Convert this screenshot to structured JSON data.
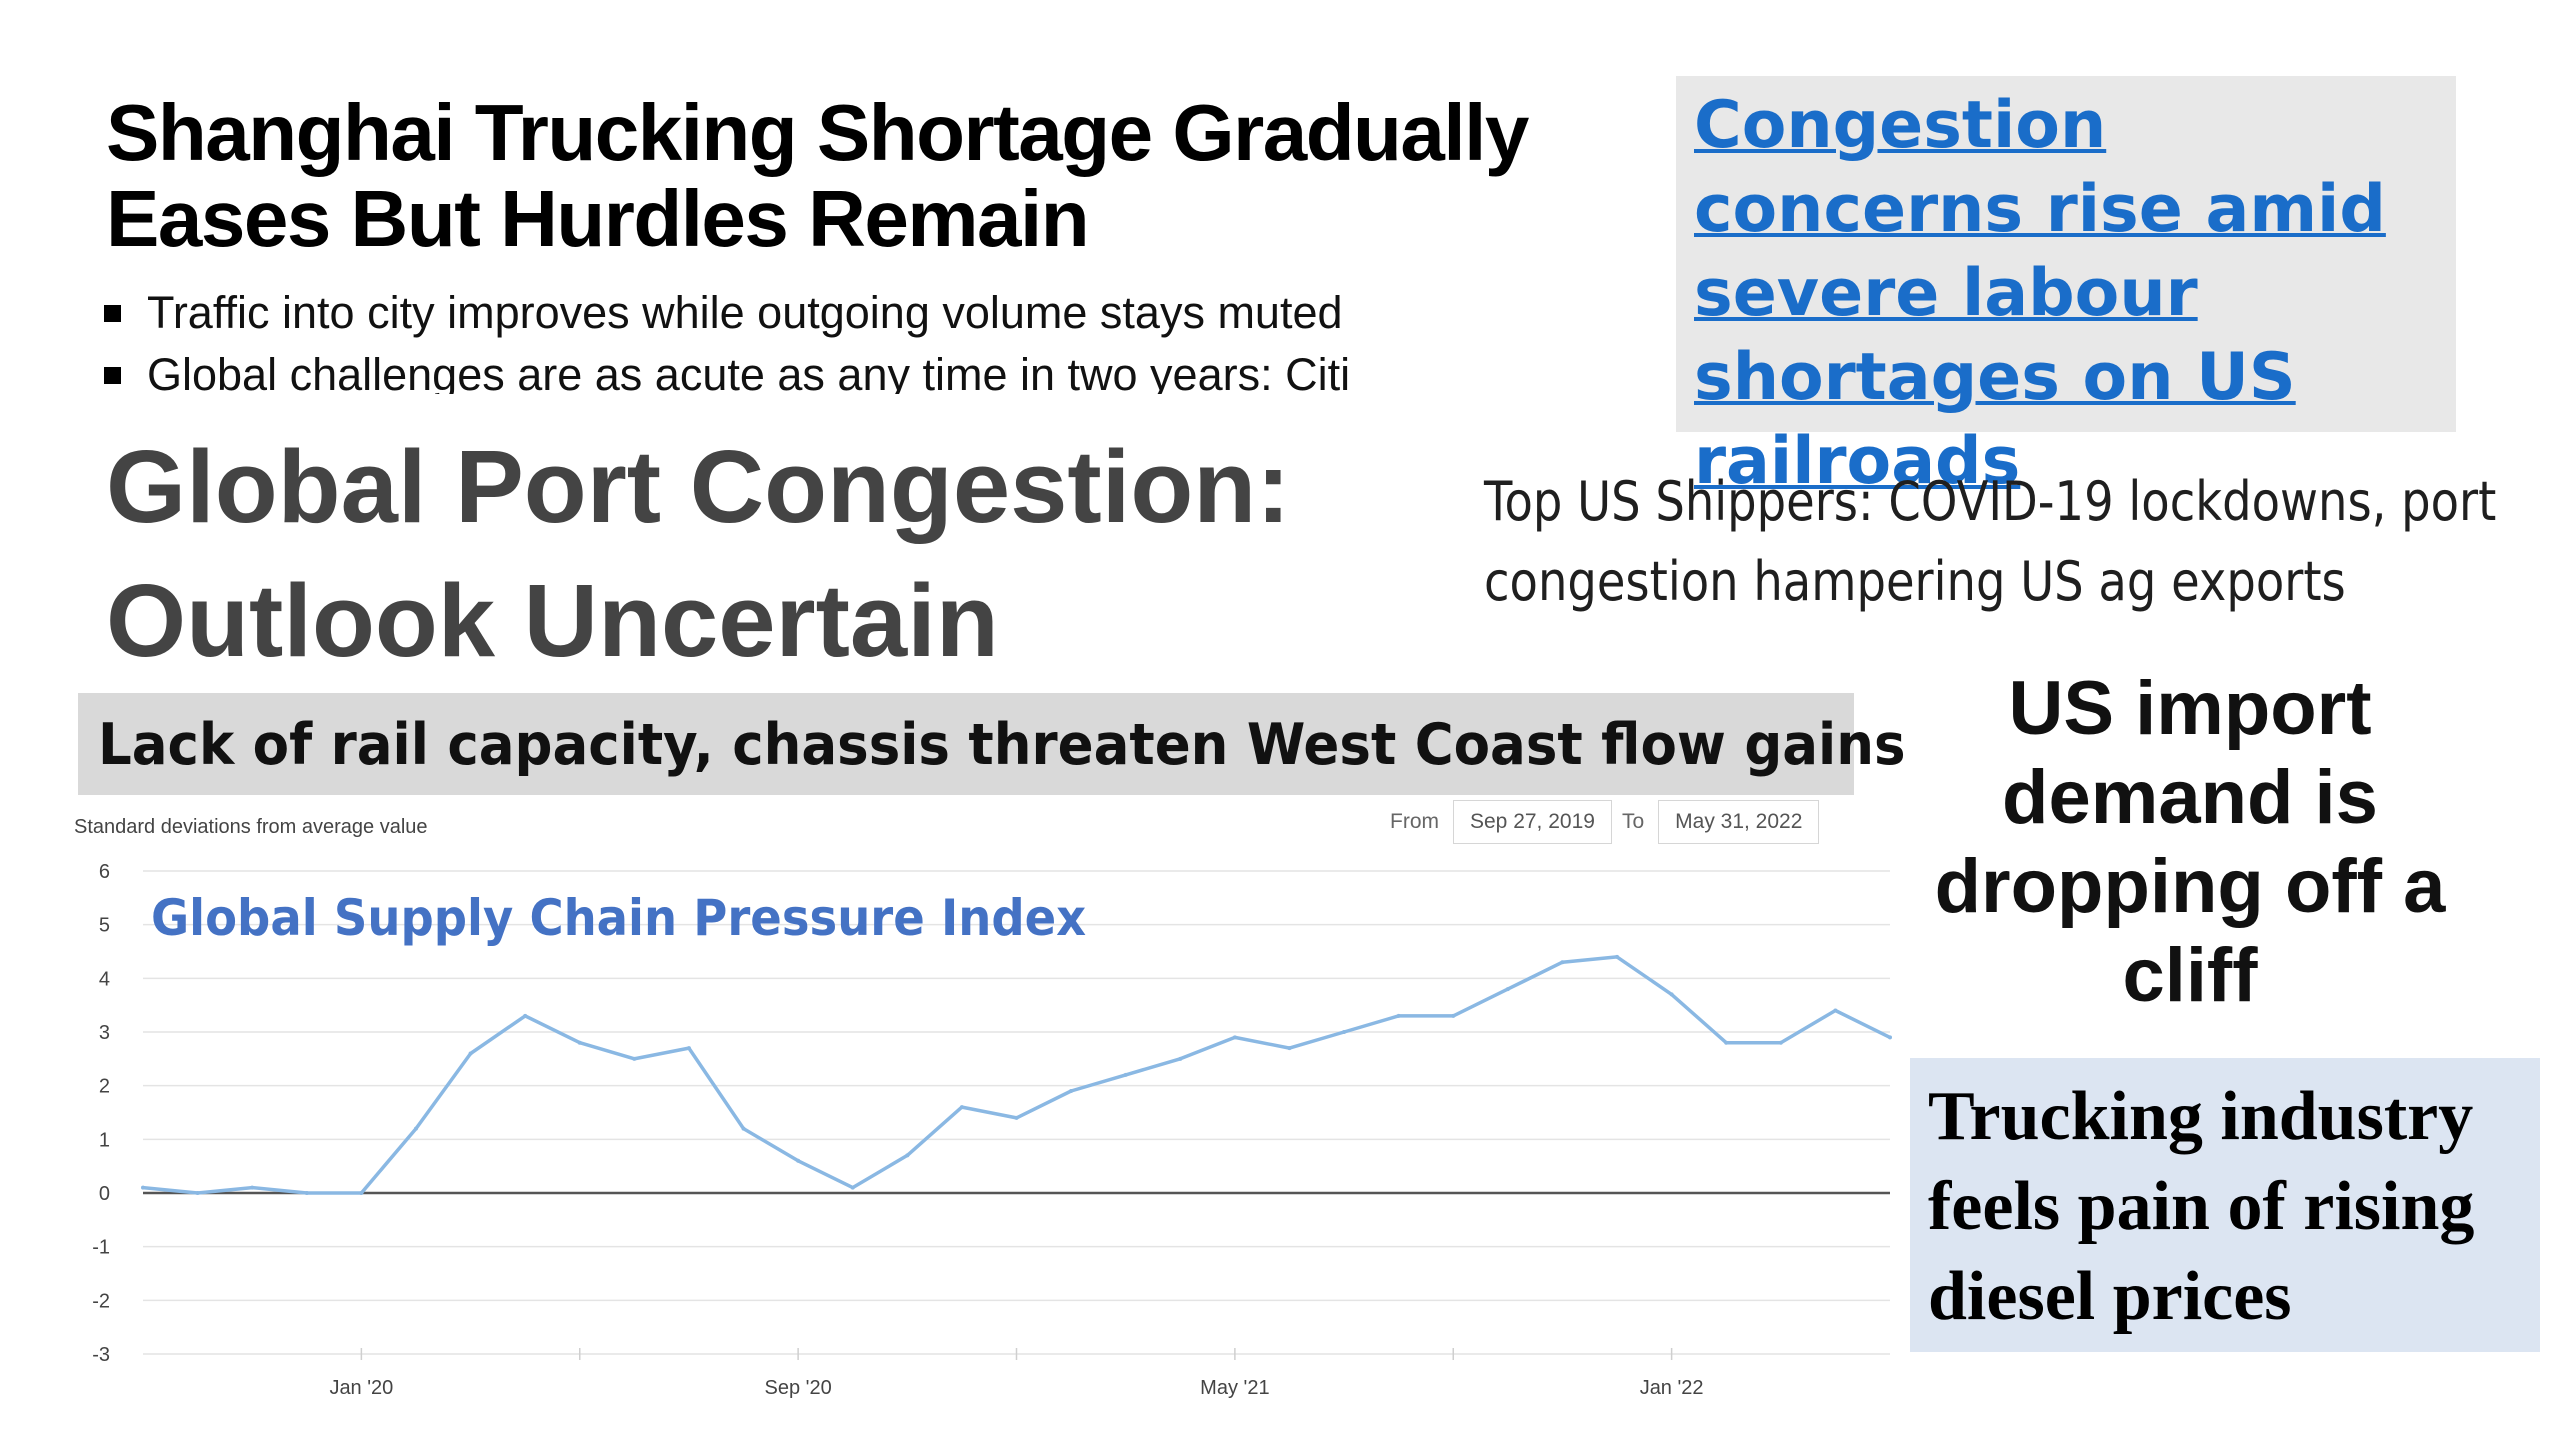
{
  "headlines": {
    "shanghai_title": "Shanghai Trucking Shortage Gradually Eases But Hurdles Remain",
    "bullets": [
      "Traffic into city improves while outgoing volume stays muted",
      "Global challenges are as acute as any time in two years: Citi"
    ],
    "port_title": "Global Port Congestion: Outlook Uncertain",
    "congestion_link": "Congestion concerns rise amid severe labour shortages on US railroads",
    "shippers": "Top US Shippers: COVID-19 lockdowns, port congestion hampering US ag exports",
    "rail": "Lack of rail capacity, chassis threaten West Coast flow gains",
    "import_demand": "US import demand is dropping off a cliff",
    "trucking": "Trucking industry feels pain of rising diesel prices"
  },
  "chart_header": {
    "y_unit_label": "Standard deviations from average value",
    "from_label": "From",
    "from_value": "Sep 27, 2019",
    "to_label": "To",
    "to_value": "May 31, 2022"
  },
  "colors": {
    "line": "#8ab8e3",
    "overlay_title": "#4472c4",
    "link": "#1a6dc9"
  },
  "chart_data": {
    "type": "line",
    "title": "Global Supply Chain Pressure Index",
    "xlabel": "",
    "ylabel": "Standard deviations from average value",
    "ylim": [
      -3,
      6
    ],
    "yticks": [
      6,
      5,
      4,
      3,
      2,
      1,
      0,
      -1,
      -2,
      -3
    ],
    "xlim": [
      "2019-09",
      "2022-05"
    ],
    "xticks": [
      {
        "date": "2020-01",
        "label": "Jan '20"
      },
      {
        "date": "2020-09",
        "label": "Sep '20"
      },
      {
        "date": "2021-05",
        "label": "May '21"
      },
      {
        "date": "2022-01",
        "label": "Jan '22"
      }
    ],
    "grid": true,
    "series": [
      {
        "name": "Global Supply Chain Pressure Index",
        "x": [
          "2019-09",
          "2019-10",
          "2019-11",
          "2019-12",
          "2020-01",
          "2020-02",
          "2020-03",
          "2020-04",
          "2020-05",
          "2020-06",
          "2020-07",
          "2020-08",
          "2020-09",
          "2020-10",
          "2020-11",
          "2020-12",
          "2021-01",
          "2021-02",
          "2021-03",
          "2021-04",
          "2021-05",
          "2021-06",
          "2021-07",
          "2021-08",
          "2021-09",
          "2021-10",
          "2021-11",
          "2021-12",
          "2022-01",
          "2022-02",
          "2022-03",
          "2022-04",
          "2022-05"
        ],
        "values": [
          0.1,
          0.0,
          0.1,
          0.0,
          0.0,
          1.2,
          2.6,
          3.3,
          2.8,
          2.5,
          2.7,
          1.2,
          0.6,
          0.1,
          0.7,
          1.6,
          1.4,
          1.9,
          2.2,
          2.5,
          2.9,
          2.7,
          3.0,
          3.3,
          3.3,
          3.8,
          4.3,
          4.4,
          3.7,
          2.8,
          2.8,
          3.4,
          2.9
        ]
      }
    ]
  }
}
